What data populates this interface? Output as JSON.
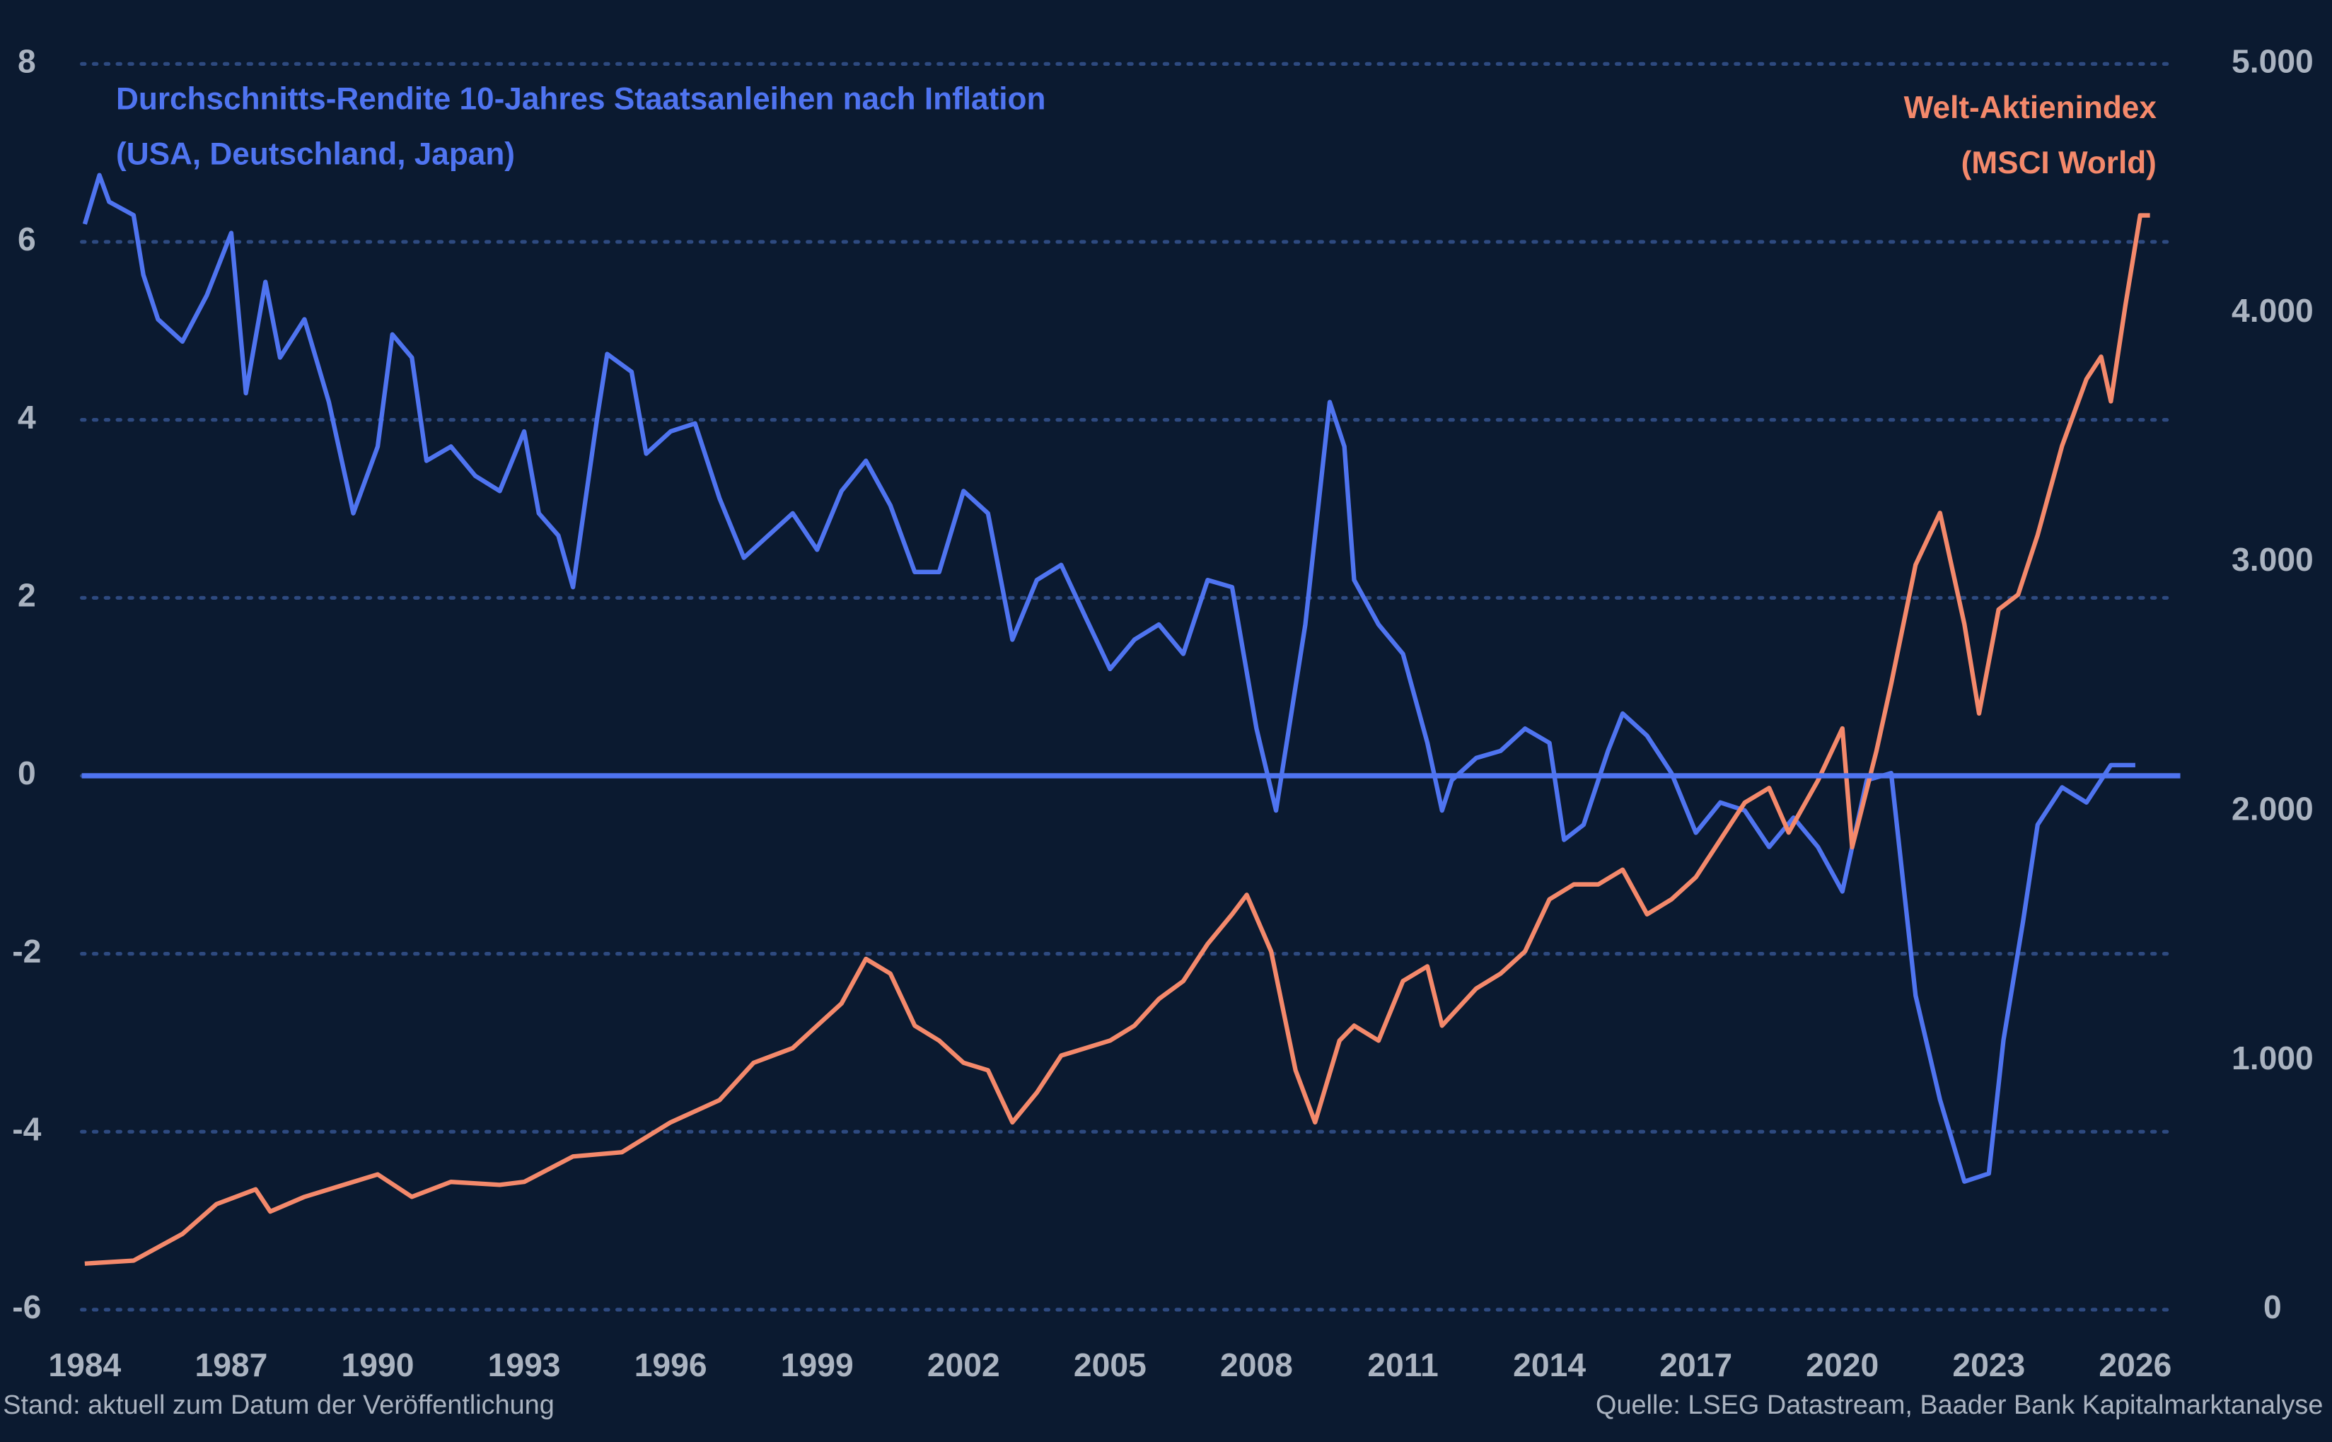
{
  "chart_data": {
    "type": "line",
    "xlim": [
      1984,
      2026.8
    ],
    "xticks": [
      1984,
      1987,
      1990,
      1993,
      1996,
      1999,
      2002,
      2005,
      2008,
      2011,
      2014,
      2017,
      2020,
      2023,
      2026
    ],
    "ylim": [
      -6,
      8
    ],
    "yticks": [
      -6,
      -4,
      -2,
      0,
      2,
      4,
      6,
      8
    ],
    "y2lim": [
      0,
      5000
    ],
    "y2ticks": [
      0,
      {
        "value": 1000,
        "label": "1.000"
      },
      {
        "value": 2000,
        "label": "2.000"
      },
      {
        "value": 3000,
        "label": "3.000"
      },
      {
        "value": 4000,
        "label": "4.000"
      },
      {
        "value": 5000,
        "label": "5.000"
      }
    ],
    "grid": true,
    "zero_line": true,
    "note": "Stand: aktuell zum Datum der Veröffentlichung",
    "source": "Quelle: LSEG Datastream, Baader Bank Kapitalmarktanalyse",
    "series": [
      {
        "name": [
          "Durchschnitts-Rendite 10-Jahres Staatsanleihen nach Inflation",
          "(USA, Deutschland, Japan)"
        ],
        "color": "#4f74f0",
        "axis": "y",
        "label_corner": "top-left",
        "x": [
          1984.0,
          1984.3,
          1984.5,
          1985.0,
          1985.2,
          1985.5,
          1986.0,
          1986.5,
          1987.0,
          1987.3,
          1987.7,
          1988.0,
          1988.5,
          1989.0,
          1989.5,
          1990.0,
          1990.3,
          1990.7,
          1991.0,
          1991.5,
          1992.0,
          1992.5,
          1993.0,
          1993.3,
          1993.7,
          1994.0,
          1994.5,
          1994.7,
          1995.2,
          1995.5,
          1996.0,
          1996.5,
          1997.0,
          1997.5,
          1998.0,
          1998.5,
          1999.0,
          1999.5,
          2000.0,
          2000.5,
          2001.0,
          2001.5,
          2002.0,
          2002.5,
          2003.0,
          2003.5,
          2004.0,
          2004.5,
          2005.0,
          2005.5,
          2006.0,
          2006.5,
          2007.0,
          2007.5,
          2008.0,
          2008.4,
          2009.0,
          2009.5,
          2009.8,
          2010.0,
          2010.5,
          2011.0,
          2011.5,
          2011.8,
          2012.0,
          2012.5,
          2013.0,
          2013.5,
          2014.0,
          2014.3,
          2014.7,
          2015.2,
          2015.5,
          2016.0,
          2016.5,
          2017.0,
          2017.5,
          2018.0,
          2018.5,
          2019.0,
          2019.5,
          2020.0,
          2020.5,
          2021.0,
          2021.5,
          2022.0,
          2022.5,
          2023.0,
          2023.3,
          2023.7,
          2024.0,
          2024.5,
          2025.0,
          2025.5,
          2026.0
        ],
        "values": [
          6.2,
          6.75,
          6.45,
          6.3,
          5.63,
          5.13,
          4.88,
          5.4,
          6.1,
          4.3,
          5.55,
          4.7,
          5.13,
          4.2,
          2.95,
          3.7,
          4.96,
          4.7,
          3.54,
          3.7,
          3.37,
          3.2,
          3.87,
          2.95,
          2.7,
          2.12,
          4.04,
          4.74,
          4.54,
          3.62,
          3.87,
          3.96,
          3.12,
          2.45,
          2.7,
          2.95,
          2.54,
          3.2,
          3.54,
          3.04,
          2.29,
          2.29,
          3.2,
          2.95,
          1.53,
          2.2,
          2.37,
          1.78,
          1.2,
          1.53,
          1.7,
          1.37,
          2.2,
          2.12,
          0.53,
          -0.39,
          1.7,
          4.2,
          3.7,
          2.2,
          1.7,
          1.37,
          0.37,
          -0.39,
          -0.05,
          0.2,
          0.28,
          0.53,
          0.37,
          -0.72,
          -0.55,
          0.28,
          0.7,
          0.45,
          0.03,
          -0.64,
          -0.3,
          -0.39,
          -0.8,
          -0.47,
          -0.8,
          -1.3,
          -0.05,
          0.03,
          -2.47,
          -3.64,
          -4.56,
          -4.47,
          -2.97,
          -1.64,
          -0.55,
          -0.13,
          -0.3,
          0.12,
          0.12
        ]
      },
      {
        "name": [
          "Welt-Aktienindex",
          "(MSCI World)"
        ],
        "color": "#f4896b",
        "axis": "y2",
        "label_corner": "top-right",
        "x": [
          1984.0,
          1985.0,
          1986.0,
          1986.7,
          1987.5,
          1987.8,
          1988.5,
          1989.5,
          1990.0,
          1990.7,
          1991.5,
          1992.5,
          1993.0,
          1994.0,
          1995.0,
          1996.0,
          1997.0,
          1997.7,
          1998.5,
          1999.0,
          1999.5,
          2000.0,
          2000.5,
          2001.0,
          2001.5,
          2002.0,
          2002.5,
          2003.0,
          2003.5,
          2004.0,
          2004.5,
          2005.0,
          2005.5,
          2006.0,
          2006.5,
          2007.0,
          2007.5,
          2007.8,
          2008.3,
          2008.8,
          2009.2,
          2009.7,
          2010.0,
          2010.5,
          2011.0,
          2011.5,
          2011.8,
          2012.5,
          2013.0,
          2013.5,
          2014.0,
          2014.5,
          2015.0,
          2015.5,
          2016.0,
          2016.5,
          2017.0,
          2017.5,
          2018.0,
          2018.5,
          2018.9,
          2019.5,
          2020.0,
          2020.2,
          2020.7,
          2021.0,
          2021.5,
          2022.0,
          2022.5,
          2022.8,
          2023.2,
          2023.6,
          2024.0,
          2024.5,
          2025.0,
          2025.3,
          2025.5,
          2025.8,
          2026.1,
          2026.3
        ],
        "values": [
          185,
          197,
          304,
          424,
          483,
          394,
          453,
          513,
          543,
          453,
          513,
          501,
          513,
          615,
          632,
          752,
          841,
          991,
          1050,
          1140,
          1229,
          1408,
          1349,
          1140,
          1080,
          991,
          961,
          752,
          871,
          1020,
          1050,
          1080,
          1140,
          1247,
          1319,
          1468,
          1587,
          1665,
          1438,
          961,
          752,
          1080,
          1140,
          1080,
          1319,
          1378,
          1140,
          1289,
          1349,
          1438,
          1647,
          1707,
          1707,
          1766,
          1587,
          1647,
          1736,
          1886,
          2035,
          2094,
          1915,
          2124,
          2333,
          1856,
          2244,
          2512,
          2990,
          3198,
          2751,
          2393,
          2810,
          2870,
          3109,
          3467,
          3735,
          3825,
          3646,
          4034,
          4392,
          4392
        ]
      }
    ]
  }
}
